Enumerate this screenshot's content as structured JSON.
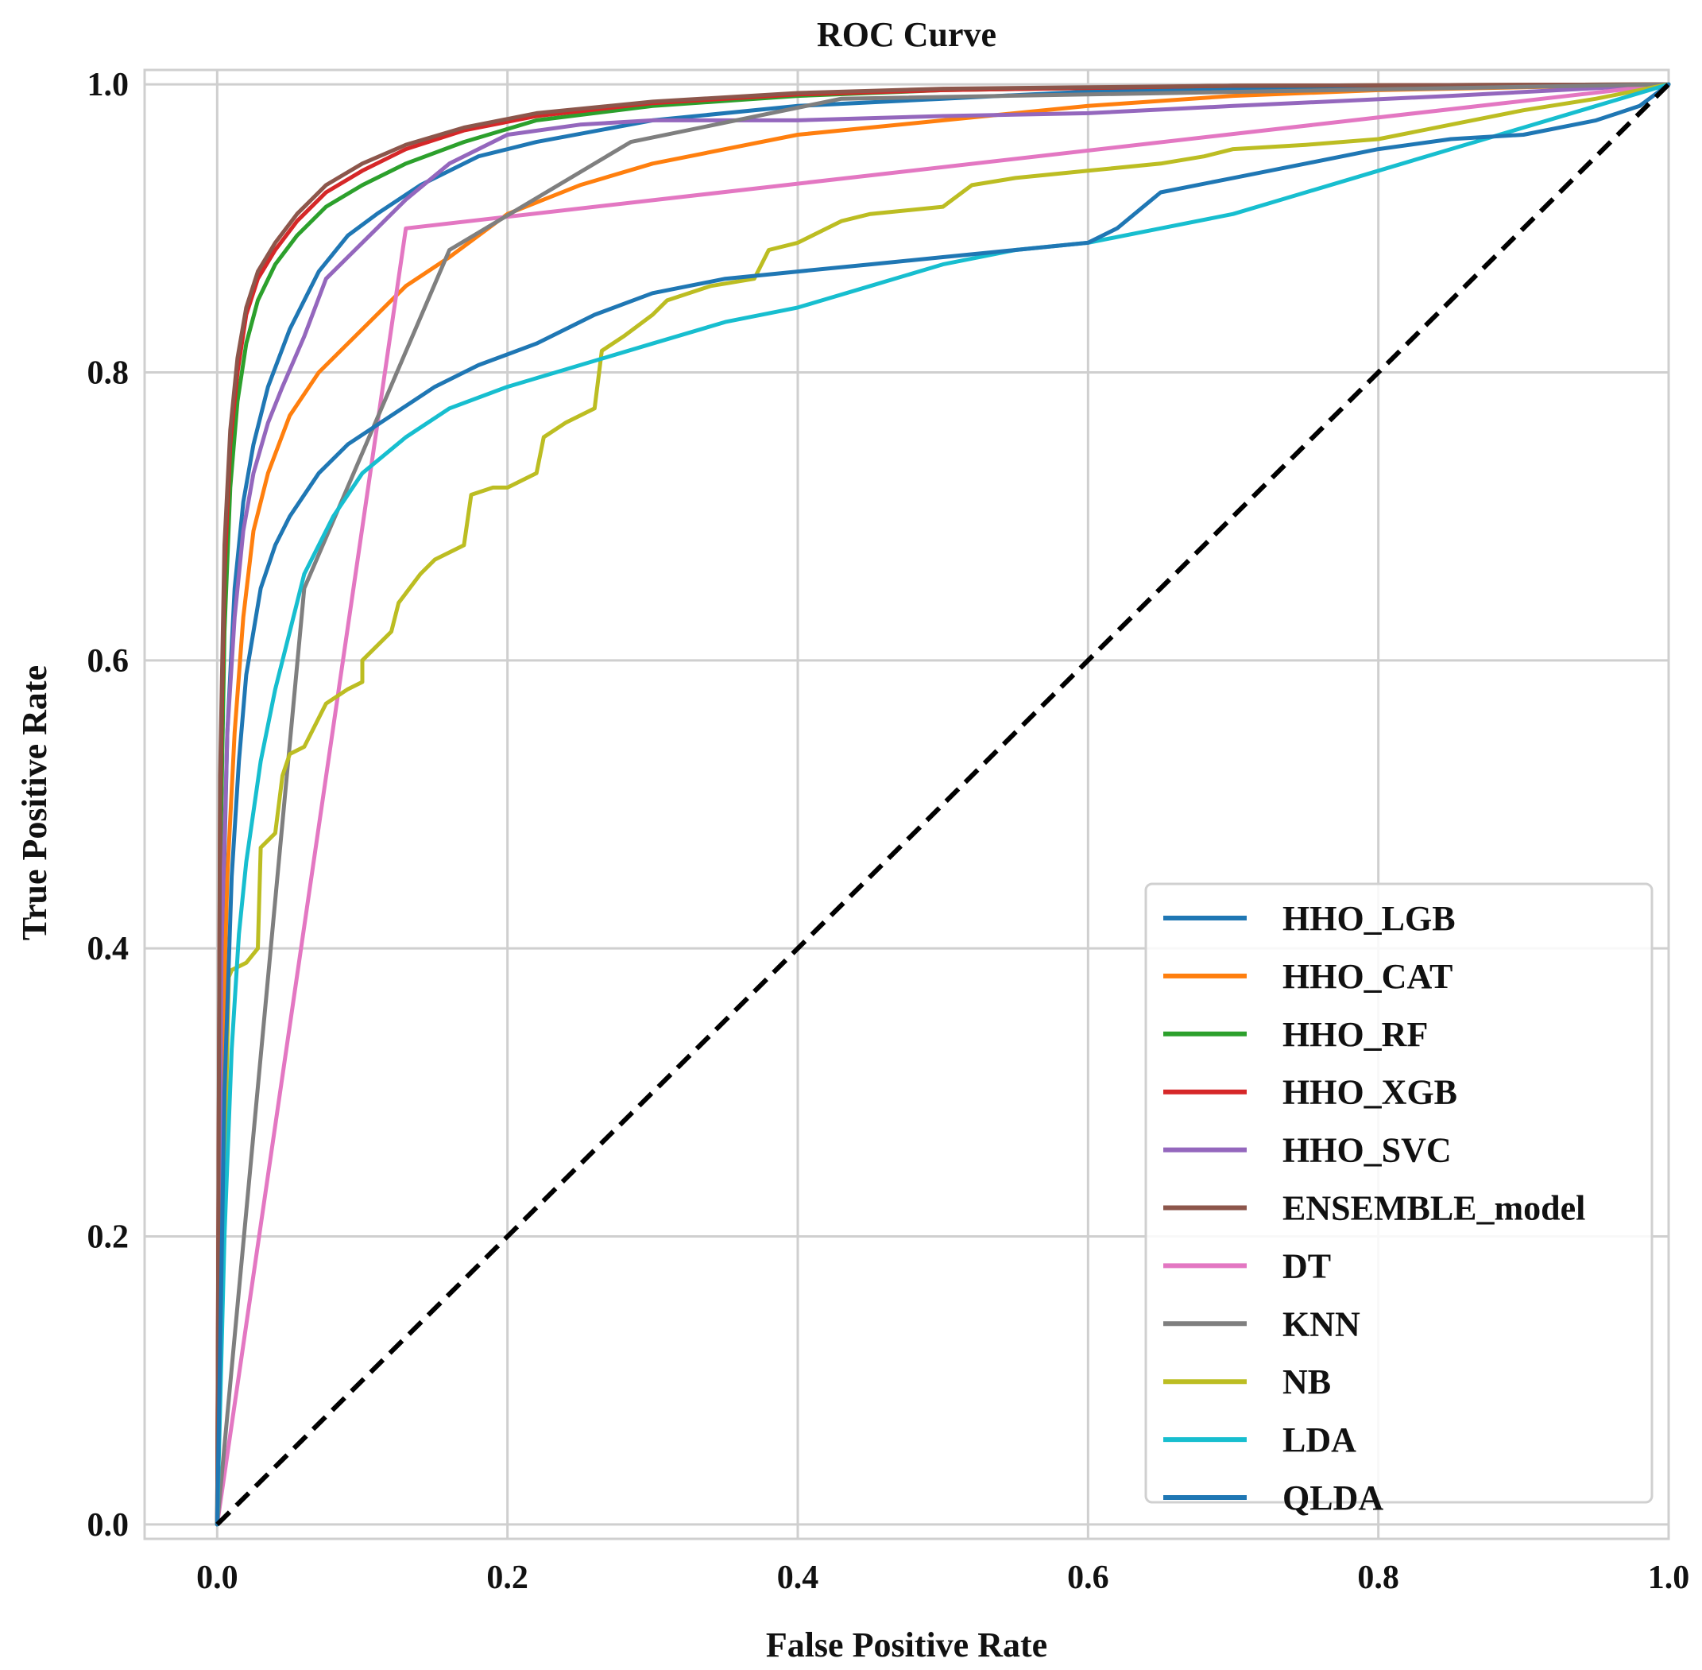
{
  "chart_data": {
    "type": "line",
    "title": "ROC Curve",
    "xlabel": "False Positive Rate",
    "ylabel": "True Positive Rate",
    "xlim": [
      -0.05,
      1.0
    ],
    "ylim": [
      -0.01,
      1.01
    ],
    "xticks": [
      "0.0",
      "0.2",
      "0.4",
      "0.6",
      "0.8",
      "1.0"
    ],
    "yticks": [
      "0.0",
      "0.2",
      "0.4",
      "0.6",
      "0.8",
      "1.0"
    ],
    "grid": true,
    "legend_position": "lower-right",
    "series": [
      {
        "name": "HHO_LGB",
        "color": "#1f77b4",
        "x": [
          0,
          0.003,
          0.007,
          0.012,
          0.018,
          0.025,
          0.035,
          0.05,
          0.07,
          0.09,
          0.11,
          0.14,
          0.18,
          0.22,
          0.3,
          0.4,
          0.5,
          0.6,
          0.8,
          1.0
        ],
        "y": [
          0,
          0.38,
          0.55,
          0.65,
          0.71,
          0.75,
          0.79,
          0.83,
          0.87,
          0.895,
          0.91,
          0.93,
          0.95,
          0.96,
          0.975,
          0.985,
          0.99,
          0.995,
          0.998,
          1.0
        ]
      },
      {
        "name": "HHO_CAT",
        "color": "#ff7f0e",
        "x": [
          0,
          0.003,
          0.007,
          0.012,
          0.018,
          0.025,
          0.035,
          0.05,
          0.07,
          0.1,
          0.13,
          0.16,
          0.2,
          0.25,
          0.3,
          0.4,
          0.5,
          0.6,
          0.7,
          0.8,
          1.0
        ],
        "y": [
          0,
          0.3,
          0.45,
          0.55,
          0.63,
          0.69,
          0.73,
          0.77,
          0.8,
          0.83,
          0.86,
          0.88,
          0.91,
          0.93,
          0.945,
          0.965,
          0.975,
          0.985,
          0.992,
          0.996,
          1.0
        ]
      },
      {
        "name": "HHO_RF",
        "color": "#2ca02c",
        "x": [
          0,
          0.002,
          0.005,
          0.009,
          0.014,
          0.02,
          0.028,
          0.04,
          0.055,
          0.075,
          0.1,
          0.13,
          0.17,
          0.22,
          0.3,
          0.4,
          0.5,
          0.7,
          1.0
        ],
        "y": [
          0,
          0.45,
          0.62,
          0.72,
          0.78,
          0.82,
          0.85,
          0.875,
          0.895,
          0.915,
          0.93,
          0.945,
          0.96,
          0.975,
          0.985,
          0.992,
          0.996,
          0.999,
          1.0
        ]
      },
      {
        "name": "HHO_XGB",
        "color": "#d62728",
        "x": [
          0,
          0.002,
          0.005,
          0.009,
          0.014,
          0.02,
          0.028,
          0.04,
          0.055,
          0.075,
          0.1,
          0.13,
          0.17,
          0.22,
          0.3,
          0.4,
          0.5,
          0.7,
          1.0
        ],
        "y": [
          0,
          0.5,
          0.66,
          0.75,
          0.8,
          0.84,
          0.865,
          0.885,
          0.905,
          0.925,
          0.94,
          0.955,
          0.968,
          0.978,
          0.987,
          0.993,
          0.996,
          0.999,
          1.0
        ]
      },
      {
        "name": "HHO_SVC",
        "color": "#9467bd",
        "x": [
          0,
          0.003,
          0.007,
          0.012,
          0.018,
          0.025,
          0.035,
          0.045,
          0.06,
          0.075,
          0.09,
          0.11,
          0.13,
          0.16,
          0.2,
          0.25,
          0.3,
          0.4,
          0.5,
          0.6,
          0.7,
          0.85,
          1.0
        ],
        "y": [
          0,
          0.4,
          0.55,
          0.63,
          0.69,
          0.73,
          0.765,
          0.79,
          0.825,
          0.865,
          0.88,
          0.9,
          0.92,
          0.945,
          0.965,
          0.972,
          0.975,
          0.975,
          0.978,
          0.98,
          0.985,
          0.992,
          1.0
        ]
      },
      {
        "name": "ENSEMBLE_model",
        "color": "#8c564b",
        "x": [
          0,
          0.002,
          0.005,
          0.009,
          0.014,
          0.02,
          0.028,
          0.04,
          0.055,
          0.075,
          0.1,
          0.13,
          0.17,
          0.22,
          0.3,
          0.4,
          0.5,
          0.7,
          1.0
        ],
        "y": [
          0,
          0.52,
          0.68,
          0.76,
          0.81,
          0.845,
          0.87,
          0.89,
          0.91,
          0.93,
          0.945,
          0.958,
          0.97,
          0.98,
          0.988,
          0.994,
          0.997,
          0.999,
          1.0
        ]
      },
      {
        "name": "DT",
        "color": "#e377c2",
        "x": [
          0,
          0.13,
          1.0
        ],
        "y": [
          0,
          0.9,
          1.0
        ]
      },
      {
        "name": "KNN",
        "color": "#7f7f7f",
        "x": [
          0,
          0.06,
          0.16,
          0.285,
          0.43,
          1.0
        ],
        "y": [
          0,
          0.65,
          0.885,
          0.96,
          0.99,
          1.0
        ]
      },
      {
        "name": "NB",
        "color": "#bcbd22",
        "x": [
          0,
          0.008,
          0.01,
          0.02,
          0.028,
          0.03,
          0.04,
          0.045,
          0.05,
          0.06,
          0.07,
          0.075,
          0.09,
          0.1,
          0.1,
          0.12,
          0.125,
          0.14,
          0.15,
          0.17,
          0.175,
          0.19,
          0.2,
          0.22,
          0.225,
          0.24,
          0.26,
          0.265,
          0.28,
          0.3,
          0.31,
          0.34,
          0.37,
          0.38,
          0.4,
          0.43,
          0.45,
          0.5,
          0.52,
          0.55,
          0.6,
          0.65,
          0.68,
          0.7,
          0.75,
          0.8,
          0.85,
          0.9,
          0.95,
          1.0
        ],
        "y": [
          0,
          0.38,
          0.385,
          0.39,
          0.4,
          0.47,
          0.48,
          0.52,
          0.535,
          0.54,
          0.56,
          0.57,
          0.58,
          0.585,
          0.6,
          0.62,
          0.64,
          0.66,
          0.67,
          0.68,
          0.715,
          0.72,
          0.72,
          0.73,
          0.755,
          0.765,
          0.775,
          0.815,
          0.825,
          0.84,
          0.85,
          0.86,
          0.865,
          0.885,
          0.89,
          0.905,
          0.91,
          0.915,
          0.93,
          0.935,
          0.94,
          0.945,
          0.95,
          0.955,
          0.958,
          0.962,
          0.972,
          0.982,
          0.99,
          1.0
        ]
      },
      {
        "name": "LDA",
        "color": "#17becf",
        "x": [
          0,
          0.005,
          0.01,
          0.015,
          0.02,
          0.03,
          0.04,
          0.05,
          0.06,
          0.08,
          0.1,
          0.13,
          0.16,
          0.2,
          0.25,
          0.3,
          0.35,
          0.4,
          0.45,
          0.5,
          0.55,
          0.6,
          0.65,
          0.7,
          0.75,
          0.8,
          0.85,
          0.9,
          0.95,
          1.0
        ],
        "y": [
          0,
          0.2,
          0.33,
          0.41,
          0.46,
          0.53,
          0.58,
          0.62,
          0.66,
          0.7,
          0.73,
          0.755,
          0.775,
          0.79,
          0.805,
          0.82,
          0.835,
          0.845,
          0.86,
          0.875,
          0.885,
          0.89,
          0.9,
          0.91,
          0.925,
          0.94,
          0.955,
          0.97,
          0.985,
          1.0
        ]
      },
      {
        "name": "QLDA",
        "color": "#1f77b4",
        "x": [
          0,
          0.005,
          0.01,
          0.015,
          0.02,
          0.03,
          0.04,
          0.05,
          0.07,
          0.09,
          0.12,
          0.15,
          0.18,
          0.22,
          0.26,
          0.3,
          0.35,
          0.4,
          0.45,
          0.5,
          0.55,
          0.6,
          0.62,
          0.65,
          0.7,
          0.75,
          0.8,
          0.85,
          0.9,
          0.95,
          0.98,
          1.0
        ],
        "y": [
          0,
          0.3,
          0.45,
          0.53,
          0.59,
          0.65,
          0.68,
          0.7,
          0.73,
          0.75,
          0.77,
          0.79,
          0.805,
          0.82,
          0.84,
          0.855,
          0.865,
          0.87,
          0.875,
          0.88,
          0.885,
          0.89,
          0.9,
          0.925,
          0.935,
          0.945,
          0.955,
          0.962,
          0.965,
          0.975,
          0.985,
          1.0
        ]
      }
    ],
    "reference_line": {
      "x": [
        0,
        1
      ],
      "y": [
        0,
        1
      ],
      "color": "#000000",
      "style": "dashed"
    }
  }
}
